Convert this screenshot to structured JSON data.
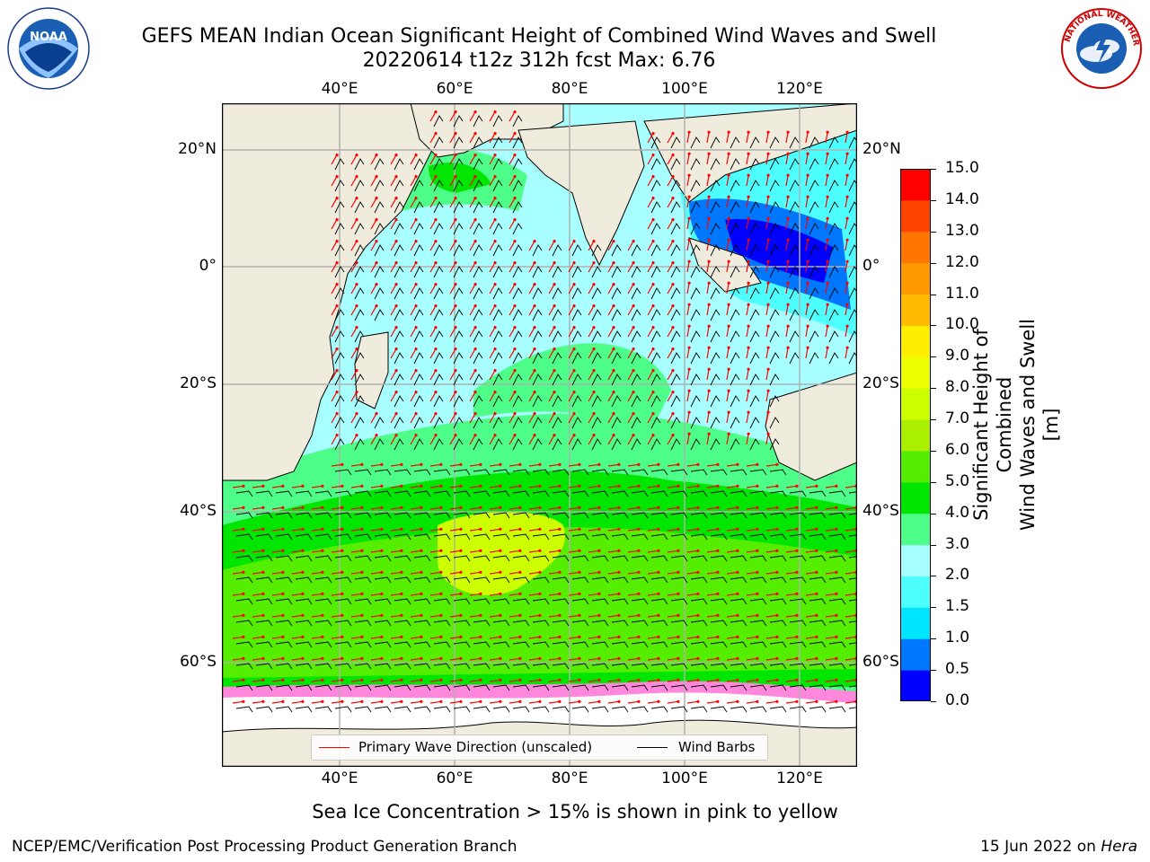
{
  "title": {
    "line1": "GEFS MEAN Indian Ocean Significant Height of Combined Wind Waves and Swell",
    "line2": "20220614 t12z 312h fcst   Max: 6.76"
  },
  "logos": {
    "noaa_text": "NOAA",
    "nws_text": "NATIONAL WEATHER SERVICE"
  },
  "map": {
    "lon_ticks": [
      "40°E",
      "60°E",
      "80°E",
      "100°E",
      "120°E"
    ],
    "lon_values": [
      40,
      60,
      80,
      100,
      120
    ],
    "lat_ticks": [
      "20°N",
      "0°",
      "20°S",
      "40°S",
      "60°S"
    ],
    "lat_values": [
      20,
      0,
      -20,
      -40,
      -60
    ],
    "colors": {
      "land": "#efecdd",
      "grid": "#b0b0b0",
      "ice_white": "#ffffff",
      "arrow": "#ff0000",
      "barb": "#000000"
    }
  },
  "legend": {
    "wave_label": "Primary Wave Direction (unscaled)",
    "barb_label": "Wind Barbs",
    "wave_color": "#ff0000",
    "barb_color": "#000000"
  },
  "colorbar": {
    "label_line1": "Significant Height of Combined",
    "label_line2": "Wind Waves and Swell [m]",
    "tick_labels": [
      "0.0",
      "0.5",
      "1.0",
      "1.5",
      "2.0",
      "3.0",
      "4.0",
      "5.0",
      "6.0",
      "7.0",
      "8.0",
      "9.0",
      "10.0",
      "11.0",
      "12.0",
      "13.0",
      "14.0",
      "15.0"
    ],
    "colors": [
      "#0000ff",
      "#0077ff",
      "#00e5ff",
      "#4dffff",
      "#a7ffff",
      "#4dff88",
      "#00e600",
      "#55ee00",
      "#aaee00",
      "#ccff00",
      "#eeff00",
      "#ffee00",
      "#ffbb00",
      "#ff9900",
      "#ff7700",
      "#ff4400",
      "#ff0000"
    ]
  },
  "footer": {
    "subtitle": "Sea Ice Concentration > 15% is shown in pink to yellow",
    "credit_left": "NCEP/EMC/Verification Post Processing Product Generation Branch",
    "date": "15 Jun 2022 on ",
    "host": "Hera"
  }
}
